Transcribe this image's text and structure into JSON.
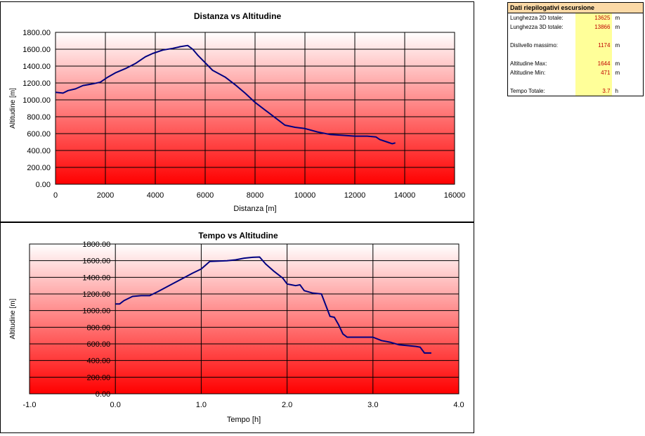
{
  "chart_data": [
    {
      "type": "line",
      "title": "Distanza vs Altitudine",
      "xlabel": "Distanza [m]",
      "ylabel": "Altitudine [m]",
      "xlim": [
        0,
        16000
      ],
      "ylim": [
        0,
        1800
      ],
      "xticks": [
        "0",
        "2000",
        "4000",
        "6000",
        "8000",
        "10000",
        "12000",
        "14000",
        "16000"
      ],
      "yticks": [
        "0.00",
        "200.00",
        "400.00",
        "600.00",
        "800.00",
        "1000.00",
        "1200.00",
        "1400.00",
        "1600.00",
        "1800.00"
      ],
      "grid": true,
      "background": "white-to-red vertical gradient",
      "series": [
        {
          "color": "#000080",
          "x": [
            0,
            300,
            500,
            800,
            1100,
            1500,
            1800,
            2100,
            2400,
            2800,
            3200,
            3600,
            3900,
            4300,
            4700,
            5000,
            5300,
            5500,
            5700,
            6000,
            6300,
            6800,
            7200,
            7600,
            8000,
            8400,
            8800,
            9200,
            9600,
            10000,
            10500,
            11000,
            11500,
            12000,
            12500,
            12850,
            13000,
            13300,
            13500,
            13625
          ],
          "y": [
            1090,
            1080,
            1110,
            1130,
            1170,
            1190,
            1210,
            1270,
            1320,
            1370,
            1430,
            1510,
            1550,
            1590,
            1610,
            1630,
            1644,
            1600,
            1530,
            1440,
            1350,
            1270,
            1180,
            1080,
            970,
            880,
            790,
            700,
            675,
            660,
            620,
            590,
            580,
            570,
            570,
            560,
            530,
            500,
            480,
            490
          ]
        }
      ]
    },
    {
      "type": "line",
      "title": "Tempo vs Altitudine",
      "xlabel": "Tempo [h]",
      "ylabel": "Altitudine [m]",
      "xlim": [
        -1.0,
        4.0
      ],
      "ylim": [
        0,
        1800
      ],
      "xticks": [
        "-1.0",
        "0.0",
        "1.0",
        "2.0",
        "3.0",
        "4.0"
      ],
      "yticks": [
        "0.00",
        "200.00",
        "400.00",
        "600.00",
        "800.00",
        "1000.00",
        "1200.00",
        "1400.00",
        "1600.00",
        "1800.00"
      ],
      "grid": true,
      "background": "white-to-red vertical gradient",
      "series": [
        {
          "color": "#000080",
          "x": [
            0.0,
            0.05,
            0.1,
            0.2,
            0.3,
            0.4,
            0.5,
            0.7,
            0.9,
            1.0,
            1.1,
            1.3,
            1.4,
            1.5,
            1.6,
            1.68,
            1.75,
            1.85,
            1.95,
            2.0,
            2.05,
            2.1,
            2.15,
            2.2,
            2.3,
            2.4,
            2.5,
            2.55,
            2.6,
            2.65,
            2.7,
            2.8,
            3.0,
            3.1,
            3.2,
            3.3,
            3.4,
            3.5,
            3.55,
            3.6,
            3.68
          ],
          "y": [
            1080,
            1080,
            1120,
            1170,
            1180,
            1180,
            1230,
            1340,
            1450,
            1500,
            1590,
            1600,
            1610,
            1630,
            1640,
            1644,
            1560,
            1470,
            1390,
            1320,
            1310,
            1300,
            1310,
            1240,
            1210,
            1200,
            930,
            920,
            830,
            720,
            680,
            680,
            680,
            640,
            620,
            590,
            580,
            570,
            560,
            490,
            490
          ]
        }
      ]
    }
  ],
  "summary": {
    "title": "Dati riepilogativi escursione",
    "rows": [
      {
        "label": "Lunghezza 2D totale:",
        "value": "13625",
        "unit": "m"
      },
      {
        "label": "Lunghezza 3D totale:",
        "value": "13866",
        "unit": "m"
      },
      {
        "label": "Dislivello massimo:",
        "value": "1174",
        "unit": "m"
      },
      {
        "label": "Altitudine Max:",
        "value": "1644",
        "unit": "m"
      },
      {
        "label": "Altitudine Min:",
        "value": "471",
        "unit": "m"
      },
      {
        "label": "Tempo Totale:",
        "value": "3.7",
        "unit": "h"
      }
    ]
  }
}
